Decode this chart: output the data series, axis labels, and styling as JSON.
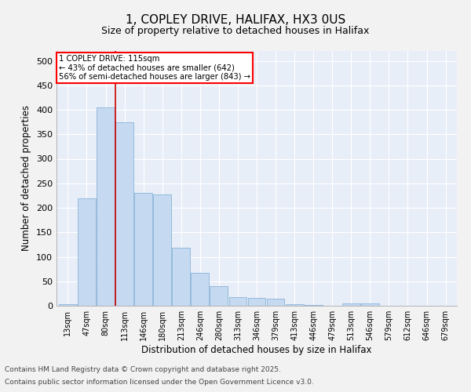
{
  "title_line1": "1, COPLEY DRIVE, HALIFAX, HX3 0US",
  "title_line2": "Size of property relative to detached houses in Halifax",
  "xlabel": "Distribution of detached houses by size in Halifax",
  "ylabel": "Number of detached properties",
  "categories": [
    "13sqm",
    "47sqm",
    "80sqm",
    "113sqm",
    "146sqm",
    "180sqm",
    "213sqm",
    "246sqm",
    "280sqm",
    "313sqm",
    "346sqm",
    "379sqm",
    "413sqm",
    "446sqm",
    "479sqm",
    "513sqm",
    "546sqm",
    "579sqm",
    "612sqm",
    "646sqm",
    "679sqm"
  ],
  "values": [
    3,
    220,
    405,
    375,
    230,
    228,
    118,
    68,
    40,
    18,
    16,
    14,
    4,
    1,
    0,
    5,
    5,
    0,
    0,
    0,
    0
  ],
  "bar_color": "#c5d9f0",
  "bar_edge_color": "#8ab4d8",
  "plot_bg_color": "#e8eef8",
  "fig_bg_color": "#f2f2f2",
  "grid_color": "#ffffff",
  "vline_color": "#cc0000",
  "vline_x_index": 3,
  "annotation_line1": "1 COPLEY DRIVE: 115sqm",
  "annotation_line2": "← 43% of detached houses are smaller (642)",
  "annotation_line3": "56% of semi-detached houses are larger (843) →",
  "ylim": [
    0,
    520
  ],
  "yticks": [
    0,
    50,
    100,
    150,
    200,
    250,
    300,
    350,
    400,
    450,
    500
  ],
  "footnote1": "Contains HM Land Registry data © Crown copyright and database right 2025.",
  "footnote2": "Contains public sector information licensed under the Open Government Licence v3.0."
}
